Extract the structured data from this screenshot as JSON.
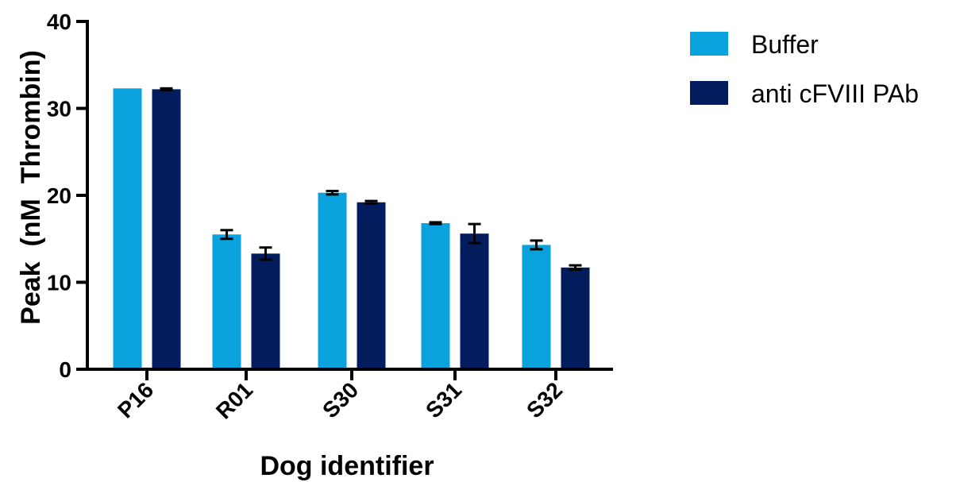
{
  "chart_data": {
    "type": "bar",
    "title": "",
    "xlabel": "Dog identifier",
    "ylabel": "Peak  (nM  Thrombin)",
    "categories": [
      "P16",
      "R01",
      "S30",
      "S31",
      "S32"
    ],
    "ylim": [
      0,
      40
    ],
    "yticks": [
      0,
      10,
      20,
      30,
      40
    ],
    "grid": false,
    "legend_position": "top-right",
    "series": [
      {
        "name": "Buffer",
        "color": "#0aa2dc",
        "values": [
          32.3,
          15.5,
          20.3,
          16.8,
          14.3
        ],
        "errors": [
          0,
          0.5,
          0.2,
          0.1,
          0.5
        ]
      },
      {
        "name": "anti cFVIII PAb",
        "color": "#021c5e",
        "values": [
          32.2,
          13.3,
          19.2,
          15.6,
          11.7
        ],
        "errors": [
          0.1,
          0.7,
          0.15,
          1.1,
          0.25
        ]
      }
    ]
  }
}
